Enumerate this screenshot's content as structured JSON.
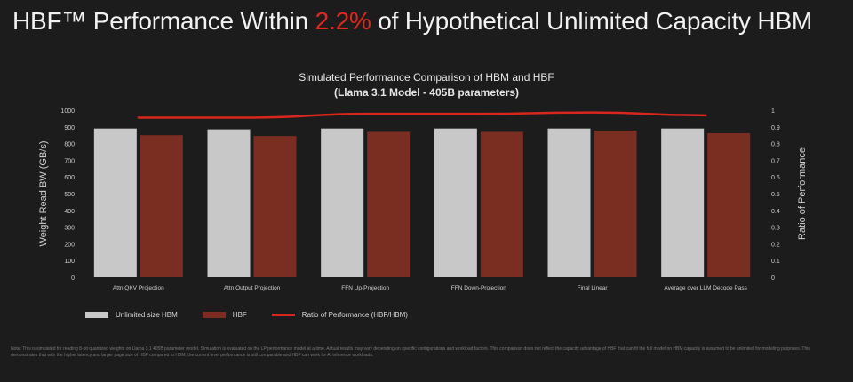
{
  "headline": {
    "prefix": "HBF™ Performance Within ",
    "highlight": "2.2%",
    "suffix": " of Hypothetical Unlimited Capacity HBM"
  },
  "colors": {
    "hbm": "#c8c8c8",
    "hbf": "#7a2e22",
    "ratio_line": "#d9261c",
    "accent": "#e0261f"
  },
  "chart_data": {
    "type": "bar",
    "title": "Simulated Performance Comparison of HBM and HBF",
    "subtitle": "(Llama 3.1 Model - 405B parameters)",
    "categories": [
      "Attn QKV Projection",
      "Attn Output Projection",
      "FFN Up-Projection",
      "FFN Down-Projection",
      "Final Linear",
      "Average over LLM Decode Pass"
    ],
    "series": [
      {
        "name": "Unlimited size HBM",
        "values": [
          890,
          885,
          890,
          890,
          890,
          890
        ]
      },
      {
        "name": "HBF",
        "values": [
          850,
          845,
          870,
          870,
          878,
          862
        ]
      }
    ],
    "line_series": {
      "name": "Ratio of Performance (HBF/HBM)",
      "values": [
        0.955,
        0.955,
        0.978,
        0.978,
        0.986,
        0.969
      ]
    },
    "ylabel": "Weight Read BW (GB/s)",
    "y2label": "Ratio of Performance",
    "ylim": [
      0,
      1000
    ],
    "y2lim": [
      0,
      1
    ],
    "yticks": [
      "0",
      "100",
      "200",
      "300",
      "400",
      "500",
      "600",
      "700",
      "800",
      "900",
      "1000"
    ],
    "y2ticks": [
      "0",
      "0.1",
      "0.2",
      "0.3",
      "0.4",
      "0.5",
      "0.6",
      "0.7",
      "0.8",
      "0.9",
      "1"
    ],
    "legend_position": "bottom-left"
  },
  "footnote": "Note: This is simulated for reading 8-bit quantized weights on Llama 3.1 405B parameter model. Simulation is evaluated on the LP performance model at a time. Actual results may vary depending on specific configurations and workload factors. This comparison does not reflect the capacity advantage of HBF that can fit the full model on HBM capacity is assumed to be unlimited for modeling purposes. This demonstrates that with the higher latency and larger page size of HBF compared to HBM, the current level performance is still comparable and HBF can work for AI inference workloads."
}
